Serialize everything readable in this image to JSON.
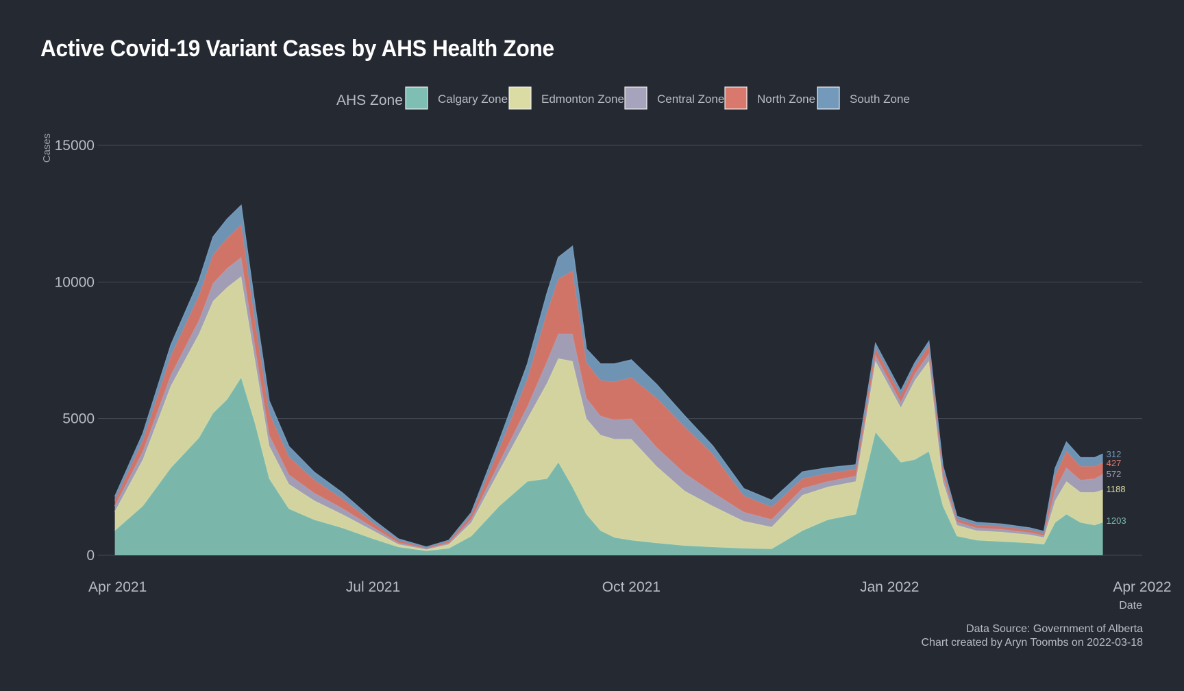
{
  "chart_data": {
    "type": "area",
    "stacked": true,
    "title": "Active Covid-19 Variant Cases by AHS Health Zone",
    "ylabel": "Cases",
    "xlabel": "Date",
    "ylim": [
      0,
      15000
    ],
    "yticks": [
      0,
      5000,
      10000,
      15000
    ],
    "xlim": [
      "2021-03-25",
      "2022-04-01"
    ],
    "xticks": [
      {
        "date": "2021-04-01",
        "label": "Apr 2021"
      },
      {
        "date": "2021-07-01",
        "label": "Jul 2021"
      },
      {
        "date": "2021-10-01",
        "label": "Oct 2021"
      },
      {
        "date": "2022-01-01",
        "label": "Jan 2022"
      },
      {
        "date": "2022-04-01",
        "label": "Apr 2022"
      }
    ],
    "grid": "horizontal",
    "legend": {
      "title": "AHS Zone",
      "position": "top"
    },
    "x": [
      "2021-03-31",
      "2021-04-10",
      "2021-04-20",
      "2021-04-30",
      "2021-05-05",
      "2021-05-10",
      "2021-05-15",
      "2021-05-20",
      "2021-05-25",
      "2021-06-01",
      "2021-06-10",
      "2021-06-20",
      "2021-07-01",
      "2021-07-10",
      "2021-07-20",
      "2021-07-28",
      "2021-08-05",
      "2021-08-15",
      "2021-08-25",
      "2021-09-01",
      "2021-09-05",
      "2021-09-10",
      "2021-09-15",
      "2021-09-20",
      "2021-09-25",
      "2021-10-01",
      "2021-10-10",
      "2021-10-20",
      "2021-10-30",
      "2021-11-10",
      "2021-11-20",
      "2021-12-01",
      "2021-12-10",
      "2021-12-20",
      "2021-12-27",
      "2022-01-05",
      "2022-01-10",
      "2022-01-15",
      "2022-01-20",
      "2022-01-25",
      "2022-02-01",
      "2022-02-10",
      "2022-02-20",
      "2022-02-25",
      "2022-03-01",
      "2022-03-05",
      "2022-03-10",
      "2022-03-15",
      "2022-03-18"
    ],
    "series": [
      {
        "name": "Calgary Zone",
        "color": "#7fbeb2",
        "values": [
          900,
          1800,
          3200,
          4300,
          5200,
          5700,
          6500,
          4800,
          2800,
          1700,
          1300,
          1000,
          600,
          300,
          160,
          250,
          700,
          1800,
          2700,
          2800,
          3400,
          2500,
          1500,
          900,
          650,
          550,
          450,
          350,
          300,
          250,
          230,
          900,
          1300,
          1500,
          4500,
          3400,
          3500,
          3800,
          1800,
          700,
          550,
          500,
          450,
          400,
          1200,
          1500,
          1200,
          1100,
          1203
        ]
      },
      {
        "name": "Edmonton Zone",
        "color": "#dbdca4",
        "values": [
          700,
          1700,
          3000,
          3800,
          4100,
          4100,
          3700,
          2300,
          1200,
          900,
          700,
          500,
          300,
          100,
          50,
          150,
          500,
          1300,
          2300,
          3500,
          3800,
          4600,
          3500,
          3500,
          3600,
          3700,
          2800,
          2000,
          1500,
          1000,
          800,
          1300,
          1200,
          1200,
          2600,
          2000,
          2900,
          3300,
          900,
          400,
          350,
          350,
          300,
          250,
          800,
          1200,
          1100,
          1200,
          1188
        ]
      },
      {
        "name": "Central Zone",
        "color": "#a6a3bc",
        "values": [
          200,
          300,
          400,
          500,
          650,
          700,
          700,
          500,
          400,
          350,
          280,
          220,
          120,
          60,
          30,
          50,
          120,
          300,
          450,
          800,
          900,
          1000,
          750,
          700,
          700,
          750,
          700,
          650,
          500,
          330,
          280,
          250,
          200,
          200,
          220,
          200,
          240,
          270,
          230,
          120,
          100,
          100,
          80,
          70,
          400,
          500,
          450,
          500,
          572
        ]
      },
      {
        "name": "North Zone",
        "color": "#d9786c",
        "values": [
          200,
          400,
          700,
          900,
          1050,
          1100,
          1200,
          900,
          800,
          650,
          480,
          350,
          160,
          80,
          30,
          60,
          150,
          500,
          1000,
          1800,
          2000,
          2300,
          1300,
          1300,
          1400,
          1500,
          1800,
          1700,
          1400,
          600,
          450,
          350,
          300,
          250,
          250,
          250,
          250,
          300,
          200,
          100,
          100,
          100,
          90,
          80,
          500,
          600,
          500,
          450,
          427
        ]
      },
      {
        "name": "South Zone",
        "color": "#7399bb",
        "values": [
          150,
          250,
          400,
          550,
          650,
          700,
          700,
          600,
          450,
          380,
          280,
          220,
          120,
          60,
          30,
          40,
          90,
          300,
          550,
          700,
          800,
          900,
          500,
          600,
          650,
          650,
          500,
          400,
          300,
          260,
          250,
          250,
          200,
          160,
          170,
          160,
          150,
          150,
          140,
          100,
          100,
          90,
          80,
          70,
          280,
          340,
          320,
          320,
          312
        ]
      }
    ],
    "end_labels": [
      "1203",
      "1188",
      "572",
      "427",
      "312"
    ],
    "caption": [
      "Data Source: Government of Alberta",
      "Chart created by Aryn Toombs on 2022-03-18"
    ]
  }
}
